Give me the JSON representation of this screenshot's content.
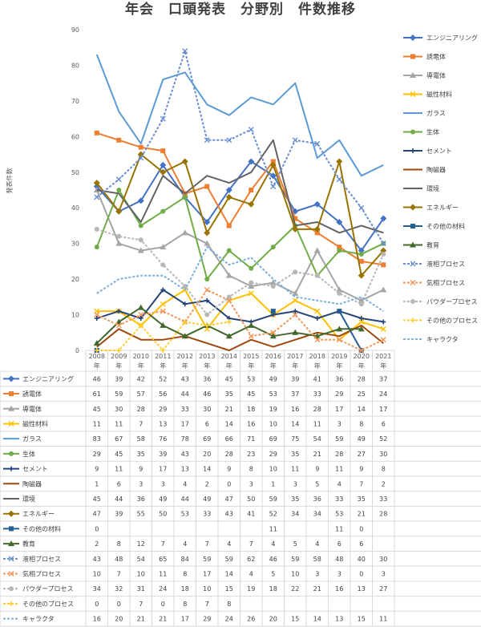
{
  "chart_data": {
    "type": "line",
    "title": "年会　口頭発表　分野別　件数推移",
    "ylabel": "発表件数",
    "ylim": [
      0,
      90
    ],
    "yticks": [
      0,
      10,
      20,
      30,
      40,
      50,
      60,
      70,
      80,
      90
    ],
    "x": [
      "2008年",
      "2009年",
      "2010年",
      "2011年",
      "2012年",
      "2013年",
      "2014年",
      "2015年",
      "2016年",
      "2017年",
      "2018年",
      "2019年",
      "2020年",
      "2021年"
    ],
    "grid": false,
    "legend": "right",
    "series": [
      {
        "name": "エンジニアリング",
        "color": "#4472C4",
        "dash": "",
        "marker": "diamond",
        "values": [
          46,
          39,
          42,
          52,
          43,
          36,
          45,
          53,
          49,
          39,
          41,
          36,
          28,
          37
        ]
      },
      {
        "name": "誘電体",
        "color": "#ED7D31",
        "dash": "",
        "marker": "square",
        "values": [
          61,
          59,
          57,
          56,
          44,
          46,
          35,
          45,
          53,
          37,
          33,
          29,
          25,
          24
        ]
      },
      {
        "name": "導電体",
        "color": "#A5A5A5",
        "dash": "",
        "marker": "triangle",
        "values": [
          45,
          30,
          28,
          29,
          33,
          30,
          21,
          18,
          19,
          16,
          28,
          17,
          14,
          17
        ]
      },
      {
        "name": "磁性材料",
        "color": "#FFC000",
        "dash": "",
        "marker": "x",
        "values": [
          11,
          11,
          7,
          13,
          17,
          6,
          14,
          16,
          10,
          14,
          11,
          3,
          8,
          6
        ]
      },
      {
        "name": "ガラス",
        "color": "#5B9BD5",
        "dash": "",
        "marker": "none",
        "values": [
          83,
          67,
          58,
          76,
          78,
          69,
          66,
          71,
          69,
          75,
          54,
          59,
          49,
          52
        ]
      },
      {
        "name": "生体",
        "color": "#70AD47",
        "dash": "",
        "marker": "circle",
        "values": [
          29,
          45,
          35,
          39,
          43,
          20,
          28,
          23,
          29,
          35,
          21,
          28,
          27,
          30
        ]
      },
      {
        "name": "セメント",
        "color": "#264478",
        "dash": "",
        "marker": "plus",
        "values": [
          9,
          11,
          9,
          17,
          13,
          14,
          9,
          8,
          10,
          11,
          9,
          11,
          9,
          8
        ]
      },
      {
        "name": "陶磁器",
        "color": "#9E480E",
        "dash": "",
        "marker": "none",
        "values": [
          1,
          6,
          3,
          3,
          4,
          2,
          0,
          3,
          1,
          3,
          5,
          4,
          7,
          2
        ]
      },
      {
        "name": "環境",
        "color": "#636363",
        "dash": "",
        "marker": "none",
        "values": [
          45,
          44,
          36,
          49,
          44,
          49,
          47,
          50,
          59,
          35,
          36,
          33,
          35,
          33
        ]
      },
      {
        "name": "エネルギー",
        "color": "#997300",
        "dash": "",
        "marker": "diamond",
        "values": [
          47,
          39,
          55,
          50,
          53,
          33,
          43,
          41,
          52,
          34,
          34,
          53,
          21,
          28
        ]
      },
      {
        "name": "その他の材料",
        "color": "#255E91",
        "dash": "",
        "marker": "square",
        "values": [
          0,
          null,
          null,
          null,
          null,
          null,
          null,
          null,
          11,
          null,
          null,
          11,
          0,
          null
        ]
      },
      {
        "name": "教育",
        "color": "#43682B",
        "dash": "",
        "marker": "triangle",
        "values": [
          2,
          8,
          12,
          7,
          4,
          7,
          4,
          7,
          4,
          5,
          4,
          6,
          6,
          null
        ]
      },
      {
        "name": "液相プロセス",
        "color": "#698ED0",
        "dash": "3,2",
        "marker": "x",
        "values": [
          43,
          48,
          54,
          65,
          84,
          59,
          59,
          62,
          46,
          59,
          58,
          48,
          40,
          30
        ]
      },
      {
        "name": "気相プロセス",
        "color": "#F1975A",
        "dash": "3,2",
        "marker": "x",
        "values": [
          10,
          7,
          10,
          11,
          8,
          17,
          14,
          4,
          5,
          10,
          3,
          3,
          0,
          3
        ]
      },
      {
        "name": "パウダープロセス",
        "color": "#B7B7B7",
        "dash": "3,2",
        "marker": "circle",
        "values": [
          34,
          32,
          31,
          24,
          18,
          10,
          15,
          19,
          18,
          22,
          21,
          16,
          13,
          27
        ]
      },
      {
        "name": "その他のプロセス",
        "color": "#FFCD33",
        "dash": "3,2",
        "marker": "plus",
        "values": [
          0,
          0,
          7,
          0,
          8,
          7,
          8,
          null,
          null,
          null,
          null,
          null,
          null,
          null
        ]
      },
      {
        "name": "キャラクタ",
        "color": "#7CAFDD",
        "dash": "3,2",
        "marker": "none",
        "values": [
          16,
          20,
          21,
          21,
          17,
          29,
          24,
          26,
          20,
          15,
          14,
          13,
          15,
          11
        ]
      }
    ],
    "table_rows": [
      [
        "46",
        "39",
        "42",
        "52",
        "43",
        "36",
        "45",
        "53",
        "49",
        "39",
        "41",
        "36",
        "28",
        "37"
      ],
      [
        "61",
        "59",
        "57",
        "56",
        "44",
        "46",
        "35",
        "45",
        "53",
        "37",
        "33",
        "29",
        "25",
        "24"
      ],
      [
        "45",
        "30",
        "28",
        "29",
        "33",
        "30",
        "21",
        "18",
        "19",
        "16",
        "28",
        "17",
        "14",
        "17"
      ],
      [
        "11",
        "11",
        "7",
        "13",
        "17",
        "6",
        "14",
        "16",
        "10",
        "14",
        "11",
        "3",
        "8",
        "6"
      ],
      [
        "83",
        "67",
        "58",
        "76",
        "78",
        "69",
        "66",
        "71",
        "69",
        "75",
        "54",
        "59",
        "49",
        "52"
      ],
      [
        "29",
        "45",
        "35",
        "39",
        "43",
        "20",
        "28",
        "23",
        "29",
        "35",
        "21",
        "28",
        "27",
        "30"
      ],
      [
        "9",
        "11",
        "9",
        "17",
        "13",
        "14",
        "9",
        "8",
        "10",
        "11",
        "9",
        "11",
        "9",
        "8"
      ],
      [
        "1",
        "6",
        "3",
        "3",
        "4",
        "2",
        "0",
        "3",
        "1",
        "3",
        "5",
        "4",
        "7",
        "2"
      ],
      [
        "45",
        "44",
        "36",
        "49",
        "44",
        "49",
        "47",
        "50",
        "59",
        "35",
        "36",
        "33",
        "35",
        "33"
      ],
      [
        "47",
        "39",
        "55",
        "50",
        "53",
        "33",
        "43",
        "41",
        "52",
        "34",
        "34",
        "53",
        "21",
        "28"
      ],
      [
        "0",
        "",
        "",
        "",
        "",
        "",
        "",
        "",
        "11",
        "",
        "",
        "11",
        "0",
        ""
      ],
      [
        "2",
        "8",
        "12",
        "7",
        "4",
        "7",
        "4",
        "7",
        "4",
        "5",
        "4",
        "6",
        "6",
        ""
      ],
      [
        "43",
        "48",
        "54",
        "65",
        "84",
        "59",
        "59",
        "62",
        "46",
        "59",
        "58",
        "48",
        "40",
        "30"
      ],
      [
        "10",
        "7",
        "10",
        "11",
        "8",
        "17",
        "14",
        "4",
        "5",
        "10",
        "3",
        "3",
        "0",
        "3"
      ],
      [
        "34",
        "32",
        "31",
        "24",
        "18",
        "10",
        "15",
        "19",
        "18",
        "22",
        "21",
        "16",
        "13",
        "27"
      ],
      [
        "0",
        "0",
        "7",
        "0",
        "8",
        "7",
        "8",
        "",
        "",
        "",
        "",
        "",
        "",
        ""
      ],
      [
        "16",
        "20",
        "21",
        "21",
        "17",
        "29",
        "24",
        "26",
        "20",
        "15",
        "14",
        "13",
        "15",
        "11"
      ]
    ]
  }
}
